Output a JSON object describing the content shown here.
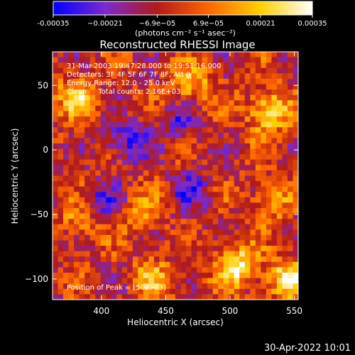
{
  "chart_data": {
    "type": "heatmap",
    "title": "Reconstructed RHESSI Image",
    "xlabel": "Heliocentric X (arcsec)",
    "ylabel": "Heliocentric Y (arcsec)",
    "xlim": [
      362,
      553
    ],
    "ylim": [
      -116,
      76
    ],
    "x_ticks": [
      400,
      450,
      500,
      550
    ],
    "y_ticks": [
      50,
      0,
      -50,
      -100
    ],
    "colorbar": {
      "range": [
        -0.00035,
        0.00035
      ],
      "tick_labels": [
        "-0.00035",
        "−0.00021",
        "−6.9e−05",
        "6.9e−05",
        "0.00021",
        "0.00035"
      ],
      "tick_values": [
        -0.00035,
        -0.00021,
        -6.9e-05,
        6.9e-05,
        0.00021,
        0.00035
      ],
      "units_label": "(photons cm⁻² s⁻¹ asec⁻²)",
      "colors": [
        "#0000ff",
        "#7a2ad0",
        "#b21a1a",
        "#ff6600",
        "#ffd000",
        "#ffffff"
      ]
    },
    "info_lines": [
      "31-Mar-2003 19:47:28.000 to 19:51:16.000",
      "Detectors: 3F 4F 5F 6F 7F 8F, Att 0",
      "Energy Range: 12.0 - 25.0 keV",
      "Clean     Total counts: 2.16E+03"
    ],
    "peak_note": "Position of Peak = [502,-83]",
    "peak_position": [
      502,
      -83
    ],
    "bright_regions": [
      {
        "x": 530,
        "y": 30,
        "value": 0.00033
      },
      {
        "x": 505,
        "y": -90,
        "value": 0.00035
      },
      {
        "x": 545,
        "y": -100,
        "value": 0.0003
      },
      {
        "x": 380,
        "y": 40,
        "value": 0.00025
      },
      {
        "x": 470,
        "y": 50,
        "value": 0.00022
      },
      {
        "x": 385,
        "y": -55,
        "value": 0.0002
      },
      {
        "x": 530,
        "y": -40,
        "value": 0.0002
      },
      {
        "x": 440,
        "y": -100,
        "value": 0.00018
      },
      {
        "x": 430,
        "y": -50,
        "value": 0.00015
      }
    ],
    "dim_regions": [
      {
        "x": 420,
        "y": 5,
        "value": -0.00025
      },
      {
        "x": 400,
        "y": -40,
        "value": -0.0002
      },
      {
        "x": 470,
        "y": -30,
        "value": -0.0002
      },
      {
        "x": 460,
        "y": 20,
        "value": -0.00018
      }
    ]
  },
  "footer": {
    "timestamp": "30-Apr-2022 10:01"
  }
}
